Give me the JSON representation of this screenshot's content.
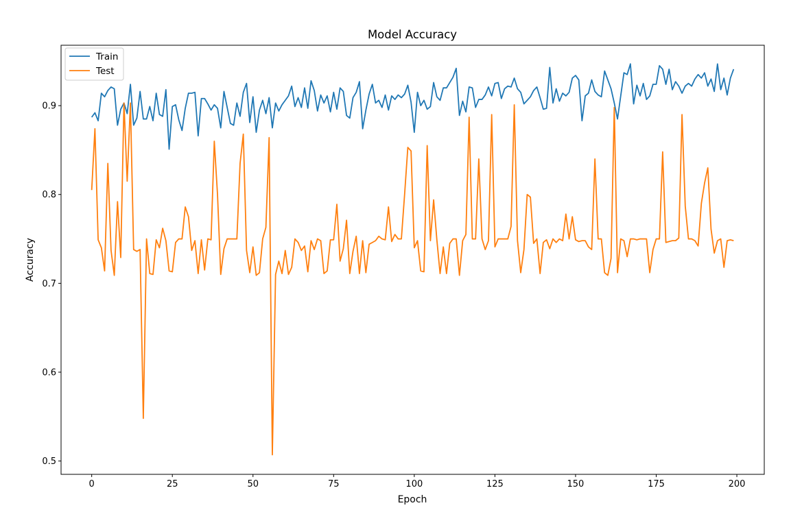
{
  "chart_data": {
    "type": "line",
    "title": "Model Accuracy",
    "xlabel": "Epoch",
    "ylabel": "Accuracy",
    "xlim": [
      -9.5,
      208.5
    ],
    "ylim": [
      0.485,
      0.968
    ],
    "xticks": [
      0,
      25,
      50,
      75,
      100,
      125,
      150,
      175,
      200
    ],
    "yticks": [
      0.5,
      0.6,
      0.7,
      0.8,
      0.9
    ],
    "ytick_labels": [
      "0.5",
      "0.6",
      "0.7",
      "0.8",
      "0.9"
    ],
    "grid": false,
    "legend_position": "upper-left",
    "series": [
      {
        "name": "Train",
        "color": "#1f77b4",
        "values": [
          0.887,
          0.892,
          0.883,
          0.914,
          0.91,
          0.917,
          0.921,
          0.919,
          0.878,
          0.896,
          0.903,
          0.891,
          0.924,
          0.878,
          0.886,
          0.916,
          0.885,
          0.885,
          0.899,
          0.883,
          0.914,
          0.89,
          0.888,
          0.918,
          0.851,
          0.899,
          0.901,
          0.884,
          0.872,
          0.897,
          0.914,
          0.914,
          0.915,
          0.866,
          0.908,
          0.908,
          0.902,
          0.895,
          0.901,
          0.897,
          0.875,
          0.916,
          0.898,
          0.88,
          0.878,
          0.903,
          0.888,
          0.915,
          0.925,
          0.881,
          0.91,
          0.87,
          0.895,
          0.906,
          0.891,
          0.909,
          0.875,
          0.903,
          0.894,
          0.901,
          0.906,
          0.911,
          0.922,
          0.899,
          0.909,
          0.898,
          0.92,
          0.897,
          0.928,
          0.917,
          0.894,
          0.912,
          0.903,
          0.911,
          0.893,
          0.915,
          0.896,
          0.92,
          0.916,
          0.889,
          0.886,
          0.909,
          0.915,
          0.927,
          0.874,
          0.895,
          0.913,
          0.924,
          0.903,
          0.906,
          0.898,
          0.912,
          0.895,
          0.911,
          0.907,
          0.912,
          0.909,
          0.913,
          0.923,
          0.904,
          0.87,
          0.915,
          0.9,
          0.906,
          0.896,
          0.899,
          0.926,
          0.91,
          0.906,
          0.92,
          0.92,
          0.926,
          0.932,
          0.942,
          0.889,
          0.905,
          0.893,
          0.921,
          0.92,
          0.898,
          0.907,
          0.907,
          0.912,
          0.921,
          0.911,
          0.925,
          0.926,
          0.908,
          0.919,
          0.922,
          0.921,
          0.931,
          0.919,
          0.915,
          0.902,
          0.906,
          0.91,
          0.917,
          0.921,
          0.909,
          0.896,
          0.897,
          0.943,
          0.903,
          0.919,
          0.905,
          0.914,
          0.911,
          0.915,
          0.931,
          0.934,
          0.929,
          0.883,
          0.911,
          0.914,
          0.929,
          0.916,
          0.912,
          0.91,
          0.939,
          0.929,
          0.919,
          0.903,
          0.885,
          0.911,
          0.937,
          0.935,
          0.947,
          0.902,
          0.923,
          0.911,
          0.925,
          0.907,
          0.911,
          0.924,
          0.924,
          0.945,
          0.941,
          0.924,
          0.941,
          0.918,
          0.927,
          0.922,
          0.914,
          0.922,
          0.925,
          0.922,
          0.93,
          0.935,
          0.931,
          0.937,
          0.922,
          0.93,
          0.916,
          0.947,
          0.918,
          0.931,
          0.912,
          0.931,
          0.941
        ]
      },
      {
        "name": "Test",
        "color": "#ff7f0e",
        "values": [
          0.805,
          0.874,
          0.749,
          0.74,
          0.714,
          0.835,
          0.737,
          0.709,
          0.792,
          0.729,
          0.903,
          0.815,
          0.903,
          0.738,
          0.736,
          0.738,
          0.548,
          0.75,
          0.711,
          0.71,
          0.749,
          0.74,
          0.762,
          0.748,
          0.714,
          0.713,
          0.746,
          0.75,
          0.75,
          0.786,
          0.775,
          0.737,
          0.748,
          0.711,
          0.749,
          0.715,
          0.75,
          0.749,
          0.86,
          0.8,
          0.71,
          0.739,
          0.75,
          0.75,
          0.75,
          0.75,
          0.835,
          0.868,
          0.737,
          0.712,
          0.741,
          0.709,
          0.712,
          0.75,
          0.763,
          0.864,
          0.507,
          0.71,
          0.725,
          0.711,
          0.737,
          0.71,
          0.718,
          0.75,
          0.746,
          0.737,
          0.742,
          0.713,
          0.748,
          0.738,
          0.75,
          0.748,
          0.711,
          0.714,
          0.749,
          0.749,
          0.789,
          0.725,
          0.739,
          0.771,
          0.711,
          0.736,
          0.753,
          0.711,
          0.748,
          0.712,
          0.744,
          0.746,
          0.748,
          0.753,
          0.75,
          0.749,
          0.786,
          0.747,
          0.755,
          0.75,
          0.75,
          0.8,
          0.853,
          0.849,
          0.74,
          0.748,
          0.714,
          0.713,
          0.855,
          0.748,
          0.794,
          0.749,
          0.711,
          0.741,
          0.711,
          0.745,
          0.75,
          0.75,
          0.709,
          0.748,
          0.755,
          0.887,
          0.75,
          0.75,
          0.84,
          0.75,
          0.738,
          0.748,
          0.89,
          0.741,
          0.75,
          0.75,
          0.75,
          0.75,
          0.764,
          0.901,
          0.748,
          0.712,
          0.738,
          0.8,
          0.797,
          0.745,
          0.75,
          0.711,
          0.746,
          0.749,
          0.739,
          0.75,
          0.746,
          0.75,
          0.748,
          0.778,
          0.75,
          0.775,
          0.749,
          0.747,
          0.748,
          0.748,
          0.741,
          0.738,
          0.84,
          0.75,
          0.75,
          0.712,
          0.709,
          0.728,
          0.898,
          0.712,
          0.75,
          0.748,
          0.73,
          0.75,
          0.75,
          0.749,
          0.75,
          0.75,
          0.75,
          0.712,
          0.738,
          0.75,
          0.75,
          0.848,
          0.746,
          0.747,
          0.748,
          0.748,
          0.751,
          0.89,
          0.787,
          0.75,
          0.75,
          0.748,
          0.742,
          0.79,
          0.813,
          0.83,
          0.761,
          0.734,
          0.748,
          0.75,
          0.718,
          0.748,
          0.749,
          0.748
        ]
      }
    ]
  }
}
